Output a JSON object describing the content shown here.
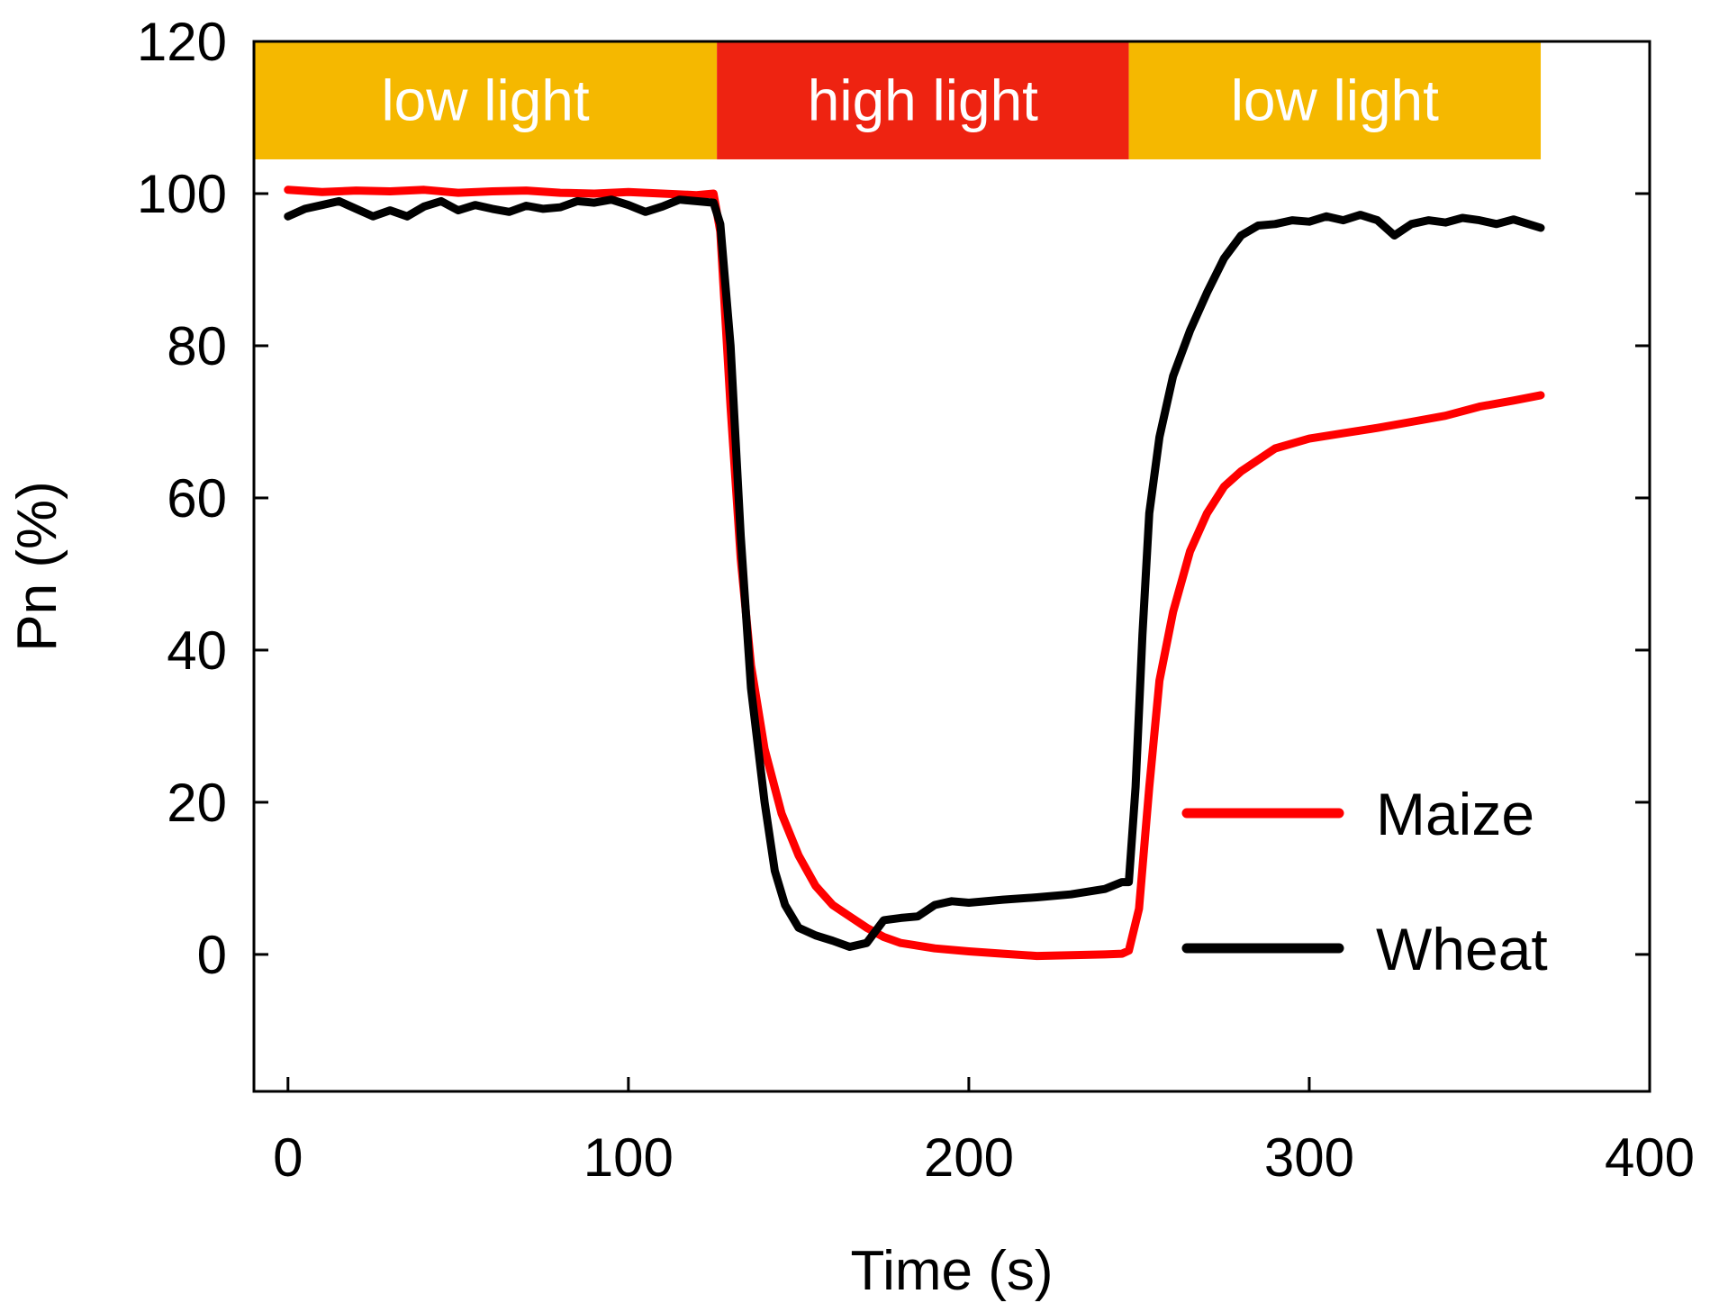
{
  "chart_data": {
    "type": "line",
    "title": "",
    "xlabel": "Time (s)",
    "ylabel": "Pn (%)",
    "xlim": [
      -10,
      400
    ],
    "ylim": [
      -18,
      120
    ],
    "xticks": [
      0,
      100,
      200,
      300,
      400
    ],
    "yticks": [
      0,
      20,
      40,
      60,
      80,
      100,
      120
    ],
    "grid": false,
    "legend": "bottom-right",
    "bands": [
      {
        "label": "low light",
        "x": [
          -10,
          126
        ],
        "color": "#f5b800"
      },
      {
        "label": "high light",
        "x": [
          126,
          247
        ],
        "color": "#ee2311"
      },
      {
        "label": "low light",
        "x": [
          247,
          368
        ],
        "color": "#f5b800"
      }
    ],
    "series": [
      {
        "name": "Maize",
        "color": "#ff0000",
        "x": [
          0,
          10,
          20,
          30,
          40,
          50,
          60,
          70,
          80,
          90,
          100,
          110,
          120,
          125,
          127,
          130,
          133,
          136,
          140,
          145,
          150,
          155,
          160,
          165,
          170,
          175,
          180,
          190,
          200,
          210,
          220,
          230,
          240,
          245,
          247,
          250,
          253,
          256,
          260,
          265,
          270,
          275,
          280,
          290,
          300,
          310,
          320,
          330,
          340,
          350,
          360,
          368
        ],
        "values": [
          100.5,
          100.2,
          100.4,
          100.3,
          100.5,
          100.1,
          100.3,
          100.4,
          100.1,
          100.0,
          100.2,
          100.0,
          99.8,
          100.0,
          95.0,
          72.0,
          52.0,
          38.0,
          27.0,
          18.5,
          13.0,
          9.0,
          6.5,
          5.0,
          3.5,
          2.3,
          1.5,
          0.8,
          0.4,
          0.1,
          -0.2,
          -0.1,
          0.0,
          0.1,
          0.5,
          6.0,
          22.0,
          36.0,
          45.0,
          53.0,
          58.0,
          61.5,
          63.5,
          66.5,
          67.8,
          68.5,
          69.2,
          70.0,
          70.8,
          72.0,
          72.8,
          73.5
        ]
      },
      {
        "name": "Wheat",
        "color": "#000000",
        "x": [
          0,
          5,
          10,
          15,
          20,
          25,
          30,
          35,
          40,
          45,
          50,
          55,
          60,
          65,
          70,
          75,
          80,
          85,
          90,
          95,
          100,
          105,
          110,
          115,
          120,
          125,
          127,
          130,
          133,
          136,
          140,
          143,
          146,
          150,
          155,
          160,
          165,
          170,
          175,
          180,
          185,
          190,
          195,
          200,
          210,
          220,
          230,
          240,
          245,
          247,
          249,
          251,
          253,
          256,
          260,
          265,
          270,
          275,
          280,
          285,
          290,
          295,
          300,
          305,
          310,
          315,
          320,
          325,
          330,
          335,
          340,
          345,
          350,
          355,
          360,
          368
        ],
        "values": [
          97.0,
          98.0,
          98.5,
          99.0,
          98.0,
          97.0,
          97.8,
          97.0,
          98.3,
          99.0,
          97.8,
          98.5,
          98.0,
          97.6,
          98.4,
          98.0,
          98.2,
          99.0,
          98.8,
          99.2,
          98.5,
          97.6,
          98.3,
          99.2,
          99.0,
          98.8,
          96.0,
          80.0,
          55.0,
          35.0,
          20.0,
          11.0,
          6.5,
          3.5,
          2.5,
          1.8,
          1.0,
          1.5,
          4.5,
          4.8,
          5.0,
          6.5,
          7.0,
          6.8,
          7.2,
          7.5,
          7.9,
          8.6,
          9.5,
          9.5,
          22.0,
          42.0,
          58.0,
          68.0,
          76.0,
          82.0,
          87.0,
          91.5,
          94.5,
          95.8,
          96.0,
          96.5,
          96.3,
          97.0,
          96.5,
          97.2,
          96.5,
          94.5,
          96.0,
          96.5,
          96.2,
          96.8,
          96.5,
          96.0,
          96.6,
          95.5
        ]
      }
    ]
  }
}
